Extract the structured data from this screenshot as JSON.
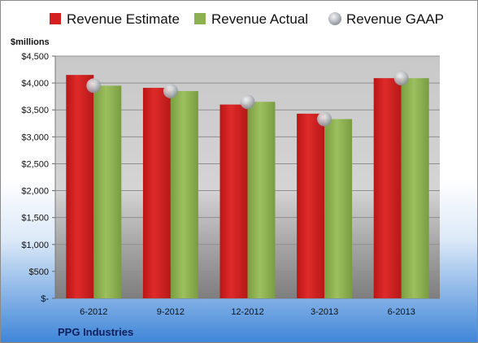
{
  "chart_data": {
    "type": "bar",
    "categories": [
      "6-2012",
      "9-2012",
      "12-2012",
      "3-2013",
      "6-2013"
    ],
    "series": [
      {
        "name": "Revenue Estimate",
        "type": "bar",
        "values": [
          4150,
          3910,
          3600,
          3430,
          4090
        ],
        "color": "#d42020"
      },
      {
        "name": "Revenue Actual",
        "type": "bar",
        "values": [
          3950,
          3850,
          3650,
          3330,
          4090
        ],
        "color": "#8db050"
      },
      {
        "name": "Revenue GAAP",
        "type": "scatter",
        "values": [
          3950,
          3850,
          3650,
          3330,
          4090
        ],
        "color": "#b8bcc2"
      }
    ],
    "ylabel": "$millions",
    "ylim": [
      0,
      4500
    ],
    "yticks": [
      0,
      500,
      1000,
      1500,
      2000,
      2500,
      3000,
      3500,
      4000,
      4500
    ],
    "ytick_labels": [
      "$-",
      "$500",
      "$1,000",
      "$1,500",
      "$2,000",
      "$2,500",
      "$3,000",
      "$3,500",
      "$4,000",
      "$4,500"
    ],
    "grid": true,
    "legend": "top"
  },
  "footer": {
    "company": "PPG Industries"
  }
}
